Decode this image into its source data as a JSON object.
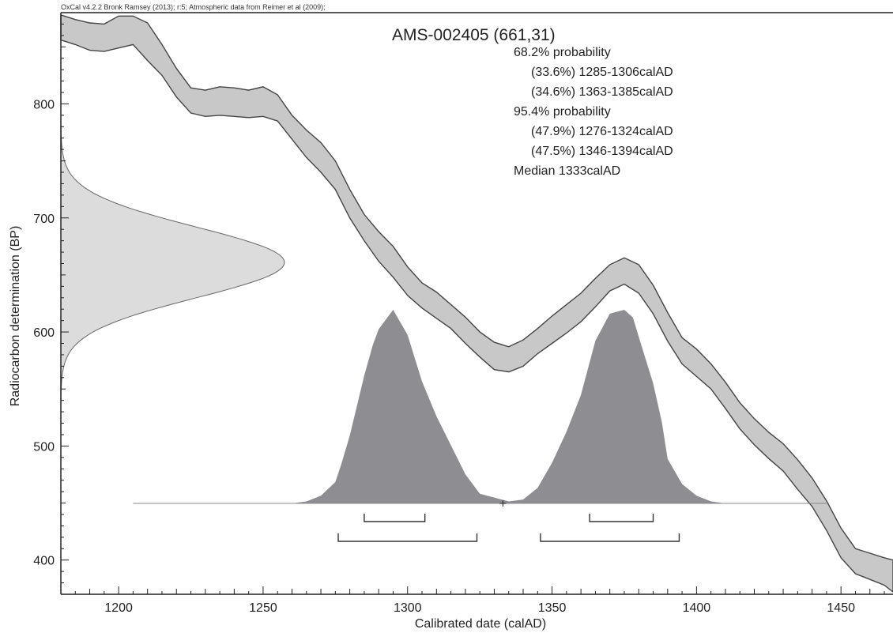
{
  "header_text": "OxCal v4.2.2 Bronk Ramsey (2013); r:5; Atmospheric data from Reimer et al (2009);",
  "results": {
    "title": "AMS-002405 (661,31)",
    "lines": [
      "68.2% probability",
      "(33.6%) 1285-1306calAD",
      "(34.6%) 1363-1385calAD",
      "95.4% probability",
      "(47.9%) 1276-1324calAD",
      "(47.5%) 1346-1394calAD",
      "Median 1333calAD"
    ]
  },
  "colors": {
    "calibration_band": "#c8c8c8",
    "measurement_fill": "#dcdcdc",
    "posterior_fill": "#8e8e92",
    "lines": "#444444"
  },
  "chart_data": {
    "type": "area",
    "xlabel": "Calibrated date (calAD)",
    "ylabel": "Radiocarbon determination (BP)",
    "xlim": [
      1180,
      1468
    ],
    "ylim": [
      370,
      880
    ],
    "x_ticks": [
      1200,
      1250,
      1300,
      1350,
      1400,
      1450
    ],
    "y_ticks": [
      400,
      500,
      600,
      700,
      800
    ],
    "measurement": {
      "mean": 661,
      "sd": 31
    },
    "calibration_curve": [
      {
        "x": 1180,
        "lo": 856,
        "hi": 878
      },
      {
        "x": 1185,
        "lo": 852,
        "hi": 874
      },
      {
        "x": 1190,
        "lo": 847,
        "hi": 871
      },
      {
        "x": 1195,
        "lo": 846,
        "hi": 870
      },
      {
        "x": 1200,
        "lo": 849,
        "hi": 877
      },
      {
        "x": 1205,
        "lo": 852,
        "hi": 877
      },
      {
        "x": 1210,
        "lo": 838,
        "hi": 871
      },
      {
        "x": 1215,
        "lo": 825,
        "hi": 852
      },
      {
        "x": 1220,
        "lo": 806,
        "hi": 831
      },
      {
        "x": 1225,
        "lo": 792,
        "hi": 814
      },
      {
        "x": 1230,
        "lo": 789,
        "hi": 812
      },
      {
        "x": 1235,
        "lo": 790,
        "hi": 815
      },
      {
        "x": 1240,
        "lo": 789,
        "hi": 814
      },
      {
        "x": 1245,
        "lo": 788,
        "hi": 812
      },
      {
        "x": 1250,
        "lo": 789,
        "hi": 815
      },
      {
        "x": 1255,
        "lo": 785,
        "hi": 808
      },
      {
        "x": 1260,
        "lo": 769,
        "hi": 790
      },
      {
        "x": 1265,
        "lo": 753,
        "hi": 777
      },
      {
        "x": 1270,
        "lo": 740,
        "hi": 766
      },
      {
        "x": 1275,
        "lo": 725,
        "hi": 750
      },
      {
        "x": 1280,
        "lo": 700,
        "hi": 725
      },
      {
        "x": 1285,
        "lo": 680,
        "hi": 703
      },
      {
        "x": 1290,
        "lo": 662,
        "hi": 688
      },
      {
        "x": 1295,
        "lo": 648,
        "hi": 675
      },
      {
        "x": 1300,
        "lo": 632,
        "hi": 657
      },
      {
        "x": 1305,
        "lo": 621,
        "hi": 643
      },
      {
        "x": 1310,
        "lo": 612,
        "hi": 635
      },
      {
        "x": 1315,
        "lo": 603,
        "hi": 624
      },
      {
        "x": 1320,
        "lo": 590,
        "hi": 613
      },
      {
        "x": 1325,
        "lo": 578,
        "hi": 600
      },
      {
        "x": 1330,
        "lo": 567,
        "hi": 591
      },
      {
        "x": 1335,
        "lo": 565,
        "hi": 587
      },
      {
        "x": 1340,
        "lo": 570,
        "hi": 593
      },
      {
        "x": 1345,
        "lo": 581,
        "hi": 603
      },
      {
        "x": 1350,
        "lo": 590,
        "hi": 614
      },
      {
        "x": 1355,
        "lo": 599,
        "hi": 624
      },
      {
        "x": 1360,
        "lo": 609,
        "hi": 634
      },
      {
        "x": 1365,
        "lo": 622,
        "hi": 647
      },
      {
        "x": 1370,
        "lo": 636,
        "hi": 659
      },
      {
        "x": 1375,
        "lo": 642,
        "hi": 665
      },
      {
        "x": 1380,
        "lo": 634,
        "hi": 659
      },
      {
        "x": 1385,
        "lo": 616,
        "hi": 641
      },
      {
        "x": 1390,
        "lo": 592,
        "hi": 617
      },
      {
        "x": 1395,
        "lo": 572,
        "hi": 595
      },
      {
        "x": 1400,
        "lo": 561,
        "hi": 585
      },
      {
        "x": 1405,
        "lo": 550,
        "hi": 572
      },
      {
        "x": 1410,
        "lo": 533,
        "hi": 556
      },
      {
        "x": 1415,
        "lo": 515,
        "hi": 538
      },
      {
        "x": 1420,
        "lo": 501,
        "hi": 524
      },
      {
        "x": 1425,
        "lo": 489,
        "hi": 512
      },
      {
        "x": 1430,
        "lo": 478,
        "hi": 502
      },
      {
        "x": 1435,
        "lo": 462,
        "hi": 488
      },
      {
        "x": 1440,
        "lo": 447,
        "hi": 472
      },
      {
        "x": 1445,
        "lo": 426,
        "hi": 452
      },
      {
        "x": 1450,
        "lo": 402,
        "hi": 428
      },
      {
        "x": 1455,
        "lo": 388,
        "hi": 410
      },
      {
        "x": 1460,
        "lo": 383,
        "hi": 406
      },
      {
        "x": 1465,
        "lo": 378,
        "hi": 402
      },
      {
        "x": 1468,
        "lo": 372,
        "hi": 400
      }
    ],
    "calibrated_distribution": {
      "x": [
        1205,
        1260,
        1265,
        1270,
        1275,
        1277,
        1280,
        1285,
        1288,
        1290,
        1295,
        1300,
        1305,
        1310,
        1315,
        1320,
        1325,
        1330,
        1335,
        1340,
        1345,
        1350,
        1355,
        1360,
        1365,
        1370,
        1375,
        1378,
        1380,
        1385,
        1388,
        1390,
        1395,
        1400,
        1405,
        1410,
        1420,
        1440,
        1445
      ],
      "density": [
        0,
        0,
        0.01,
        0.04,
        0.11,
        0.2,
        0.35,
        0.66,
        0.82,
        0.9,
        1.0,
        0.87,
        0.63,
        0.45,
        0.3,
        0.15,
        0.05,
        0.03,
        0.01,
        0.02,
        0.08,
        0.21,
        0.37,
        0.56,
        0.84,
        0.98,
        1.0,
        0.96,
        0.86,
        0.62,
        0.42,
        0.23,
        0.1,
        0.04,
        0.01,
        0,
        0,
        0,
        0
      ],
      "relative_to_peak": true
    },
    "ranges_68": [
      [
        1285,
        1306
      ],
      [
        1363,
        1385
      ]
    ],
    "ranges_95": [
      [
        1276,
        1324
      ],
      [
        1346,
        1394
      ]
    ],
    "median": 1333
  }
}
